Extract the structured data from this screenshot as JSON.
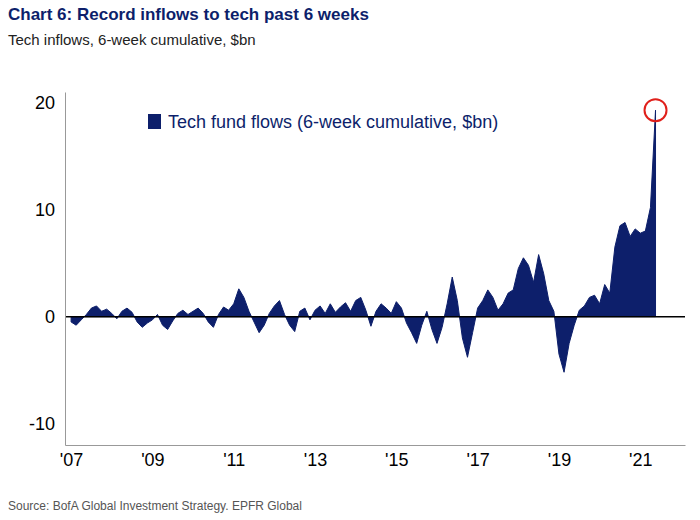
{
  "chart_data": {
    "type": "area",
    "title": "Chart 6: Record inflows to tech past 6 weeks",
    "subtitle": "Tech inflows, 6-week cumulative, $bn",
    "source": "Source:  BofA Global Investment Strategy. EPFR Global",
    "x": [
      2007,
      2007.125,
      2007.25,
      2007.375,
      2007.5,
      2007.625,
      2007.75,
      2007.875,
      2008,
      2008.125,
      2008.25,
      2008.375,
      2008.5,
      2008.625,
      2008.75,
      2008.875,
      2009,
      2009.125,
      2009.25,
      2009.375,
      2009.5,
      2009.625,
      2009.75,
      2009.875,
      2010,
      2010.125,
      2010.25,
      2010.375,
      2010.5,
      2010.625,
      2010.75,
      2010.875,
      2011,
      2011.125,
      2011.25,
      2011.375,
      2011.5,
      2011.625,
      2011.75,
      2011.875,
      2012,
      2012.125,
      2012.25,
      2012.375,
      2012.5,
      2012.625,
      2012.75,
      2012.875,
      2013,
      2013.125,
      2013.25,
      2013.375,
      2013.5,
      2013.625,
      2013.75,
      2013.875,
      2014,
      2014.125,
      2014.25,
      2014.375,
      2014.5,
      2014.625,
      2014.75,
      2014.875,
      2015,
      2015.125,
      2015.25,
      2015.375,
      2015.5,
      2015.625,
      2015.75,
      2015.875,
      2016,
      2016.125,
      2016.25,
      2016.375,
      2016.5,
      2016.625,
      2016.75,
      2016.875,
      2017,
      2017.125,
      2017.25,
      2017.375,
      2017.5,
      2017.625,
      2017.75,
      2017.875,
      2018,
      2018.125,
      2018.25,
      2018.375,
      2018.5,
      2018.625,
      2018.75,
      2018.875,
      2019,
      2019.125,
      2019.25,
      2019.375,
      2019.5,
      2019.625,
      2019.75,
      2019.875,
      2020,
      2020.125,
      2020.25,
      2020.375,
      2020.5,
      2020.625,
      2020.75,
      2020.875,
      2021,
      2021.125,
      2021.25,
      2021.375
    ],
    "series": [
      {
        "name": "Tech fund flows (6-week cumulative, $bn)",
        "color": "#0d1f6b",
        "values": [
          -0.5,
          -0.8,
          -0.3,
          0.2,
          0.8,
          1.0,
          0.5,
          0.7,
          0.3,
          -0.2,
          0.5,
          0.8,
          0.4,
          -0.5,
          -1.0,
          -0.6,
          -0.3,
          0.2,
          -0.8,
          -1.2,
          -0.4,
          0.3,
          0.6,
          0.2,
          0.5,
          0.8,
          0.3,
          -0.5,
          -1.0,
          0.2,
          0.9,
          0.6,
          1.2,
          2.6,
          1.8,
          0.5,
          -0.5,
          -1.5,
          -0.8,
          0.3,
          1.0,
          1.5,
          0.2,
          -0.8,
          -1.4,
          0.5,
          0.8,
          -0.3,
          0.6,
          1.0,
          0.3,
          1.2,
          0.4,
          0.9,
          1.3,
          0.5,
          1.5,
          1.8,
          0.6,
          -0.9,
          0.5,
          1.2,
          0.8,
          0.3,
          1.4,
          0.8,
          -0.6,
          -1.5,
          -2.5,
          -0.8,
          0.5,
          -1.2,
          -2.5,
          -1.0,
          1.2,
          3.7,
          1.5,
          -2.0,
          -3.8,
          -1.5,
          0.8,
          1.5,
          2.5,
          1.8,
          0.6,
          1.2,
          2.2,
          2.5,
          4.5,
          5.5,
          4.8,
          3.2,
          5.8,
          4.0,
          1.5,
          0.5,
          -3.5,
          -5.2,
          -2.5,
          -0.8,
          0.6,
          1.0,
          1.8,
          2.0,
          1.2,
          3.0,
          2.2,
          6.5,
          8.5,
          8.8,
          7.5,
          8.2,
          7.8,
          8.0,
          10.2,
          19.3
        ]
      }
    ],
    "xlim": [
      2006.85,
      2022.1
    ],
    "xticks": [
      {
        "value": 2007,
        "label": "'07"
      },
      {
        "value": 2009,
        "label": "'09"
      },
      {
        "value": 2011,
        "label": "'11"
      },
      {
        "value": 2013,
        "label": "'13"
      },
      {
        "value": 2015,
        "label": "'15"
      },
      {
        "value": 2017,
        "label": "'17"
      },
      {
        "value": 2019,
        "label": "'19"
      },
      {
        "value": 2021,
        "label": "'21"
      }
    ],
    "ylim": [
      -12,
      21
    ],
    "yticks": [
      -10,
      0,
      10,
      20
    ],
    "grid": false,
    "legend": "upper left"
  }
}
